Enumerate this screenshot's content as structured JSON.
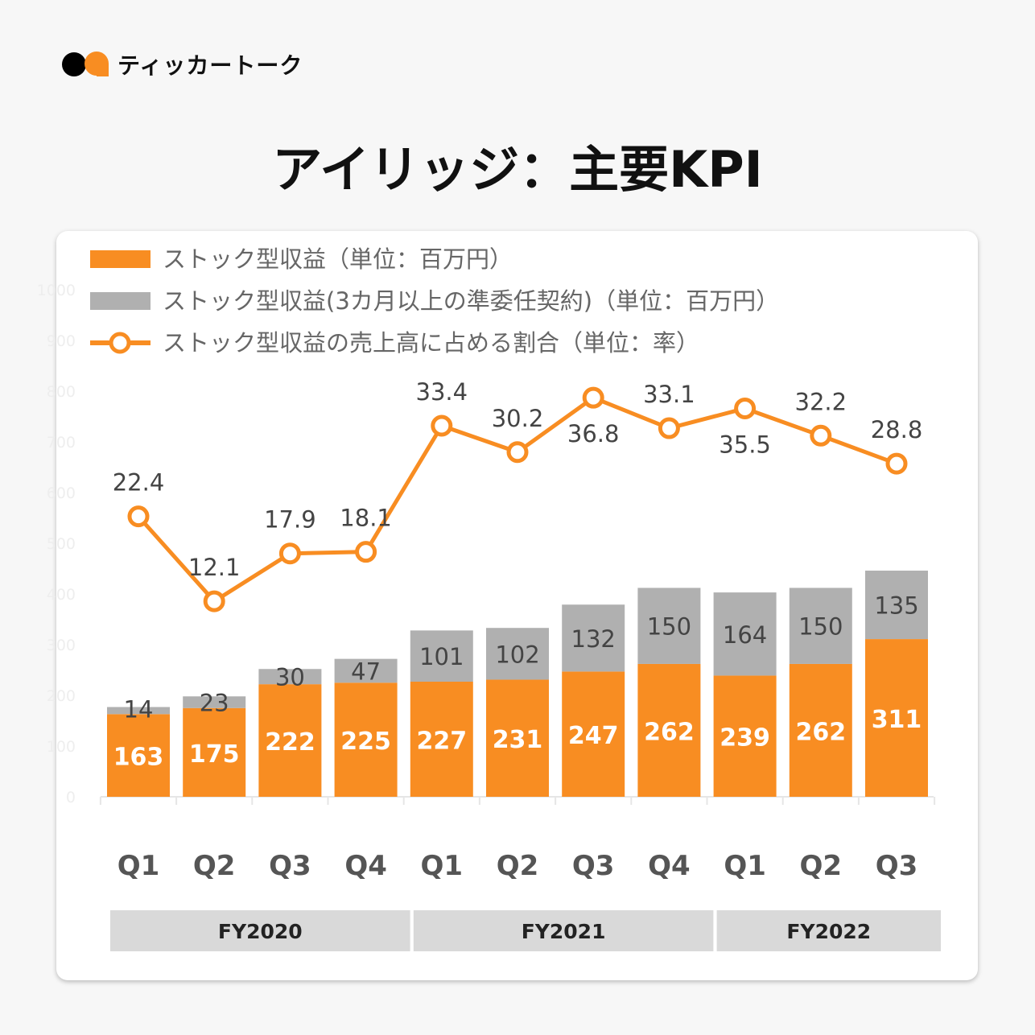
{
  "brand": {
    "name": "ティッカートーク"
  },
  "title": "アイリッジ：主要KPI",
  "colors": {
    "orange": "#f88d22",
    "gray": "#b0b0b0",
    "fy_box": "#d9d9d9",
    "axis_text": "#eeeeee"
  },
  "chart_data": {
    "type": "bar+line",
    "stacked": true,
    "categories": [
      "Q1",
      "Q2",
      "Q3",
      "Q4",
      "Q1",
      "Q2",
      "Q3",
      "Q4",
      "Q1",
      "Q2",
      "Q3"
    ],
    "groups": [
      {
        "label": "FY2020",
        "categories": [
          0,
          1,
          2,
          3
        ]
      },
      {
        "label": "FY2021",
        "categories": [
          4,
          5,
          6,
          7
        ]
      },
      {
        "label": "FY2022",
        "categories": [
          8,
          9,
          10
        ]
      }
    ],
    "y_axis": {
      "range": [
        0,
        1000
      ],
      "ticks": [
        0,
        100,
        200,
        300,
        400,
        500,
        600,
        700,
        800,
        900,
        1000
      ]
    },
    "legend_placement": "top-left",
    "series": [
      {
        "name": "ストック型収益（単位：百万円）",
        "type": "bar",
        "color": "#f88d22",
        "values": [
          163,
          175,
          222,
          225,
          227,
          231,
          247,
          262,
          239,
          262,
          311
        ]
      },
      {
        "name": "ストック型収益(3カ月以上の準委任契約)（単位：百万円）",
        "type": "bar",
        "color": "#b0b0b0",
        "values": [
          14,
          23,
          30,
          47,
          101,
          102,
          132,
          150,
          164,
          150,
          135
        ]
      },
      {
        "name": "ストック型収益の売上高に占める割合（単位：率）",
        "type": "line",
        "color": "#f88d22",
        "values": [
          22.4,
          12.1,
          17.9,
          18.1,
          33.4,
          30.2,
          36.8,
          33.1,
          35.5,
          32.2,
          28.8
        ]
      }
    ]
  }
}
